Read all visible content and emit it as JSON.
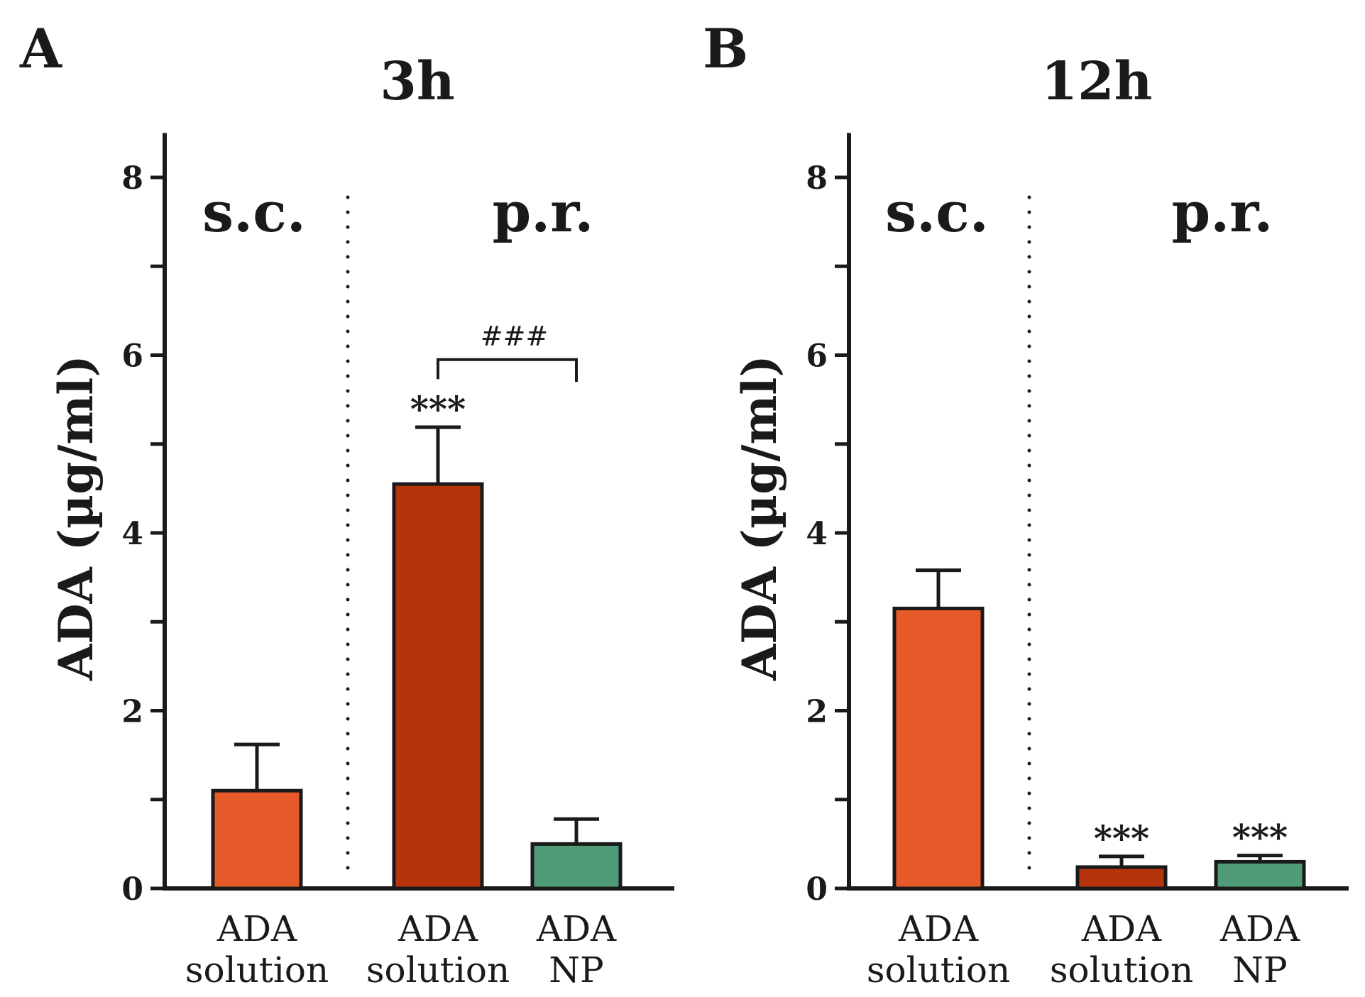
{
  "chart_data": [
    {
      "type": "bar",
      "panel_label": "A",
      "title": "3h",
      "ylabel": "ADA (µg/ml)",
      "ylim": [
        0,
        8.5
      ],
      "ytick_labels": [
        "0",
        "2",
        "4",
        "6",
        "8"
      ],
      "group_labels": [
        "s.c.",
        "p.r."
      ],
      "categories": [
        [
          "ADA",
          "solution"
        ],
        [
          "ADA",
          "solution"
        ],
        [
          "ADA",
          "NP"
        ]
      ],
      "values": [
        1.1,
        4.55,
        0.5
      ],
      "errors": [
        0.52,
        0.64,
        0.28
      ],
      "colors": [
        "#e65a2a",
        "#b5340b",
        "#4f9a77"
      ],
      "significance": [
        "",
        "***",
        ""
      ],
      "bracket": {
        "from": 1,
        "to": 2,
        "label": "###"
      }
    },
    {
      "type": "bar",
      "panel_label": "B",
      "title": "12h",
      "ylabel": "ADA (µg/ml)",
      "ylim": [
        0,
        8.5
      ],
      "ytick_labels": [
        "0",
        "2",
        "4",
        "6",
        "8"
      ],
      "group_labels": [
        "s.c.",
        "p.r."
      ],
      "categories": [
        [
          "ADA",
          "solution"
        ],
        [
          "ADA",
          "solution"
        ],
        [
          "ADA",
          "NP"
        ]
      ],
      "values": [
        3.15,
        0.24,
        0.3
      ],
      "errors": [
        0.43,
        0.12,
        0.07
      ],
      "colors": [
        "#e65a2a",
        "#b5340b",
        "#4f9a77"
      ],
      "significance": [
        "",
        "***",
        "***"
      ],
      "bracket": null
    }
  ]
}
